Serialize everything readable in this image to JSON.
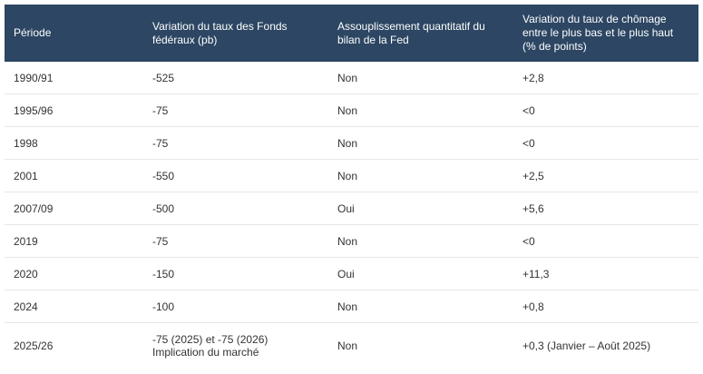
{
  "table": {
    "headers": [
      "Période",
      "Variation du taux des Fonds fédéraux (pb)",
      "Assouplissement quantitatif du bilan de la Fed",
      "Variation du taux de chômage entre le plus bas et le plus haut (% de points)"
    ],
    "rows": [
      [
        "1990/91",
        "-525",
        "Non",
        "+2,8"
      ],
      [
        "1995/96",
        "-75",
        "Non",
        "<0"
      ],
      [
        "1998",
        "-75",
        "Non",
        "<0"
      ],
      [
        "2001",
        "-550",
        "Non",
        "+2,5"
      ],
      [
        "2007/09",
        "-500",
        "Oui",
        "+5,6"
      ],
      [
        "2019",
        "-75",
        "Non",
        "<0"
      ],
      [
        "2020",
        "-150",
        "Oui",
        "+11,3"
      ],
      [
        "2024",
        "-100",
        "Non",
        "+0,8"
      ],
      [
        "2025/26",
        "-75 (2025) et -75 (2026)\nImplication du marché",
        "Non",
        "+0,3 (Janvier – Août 2025)"
      ]
    ]
  }
}
